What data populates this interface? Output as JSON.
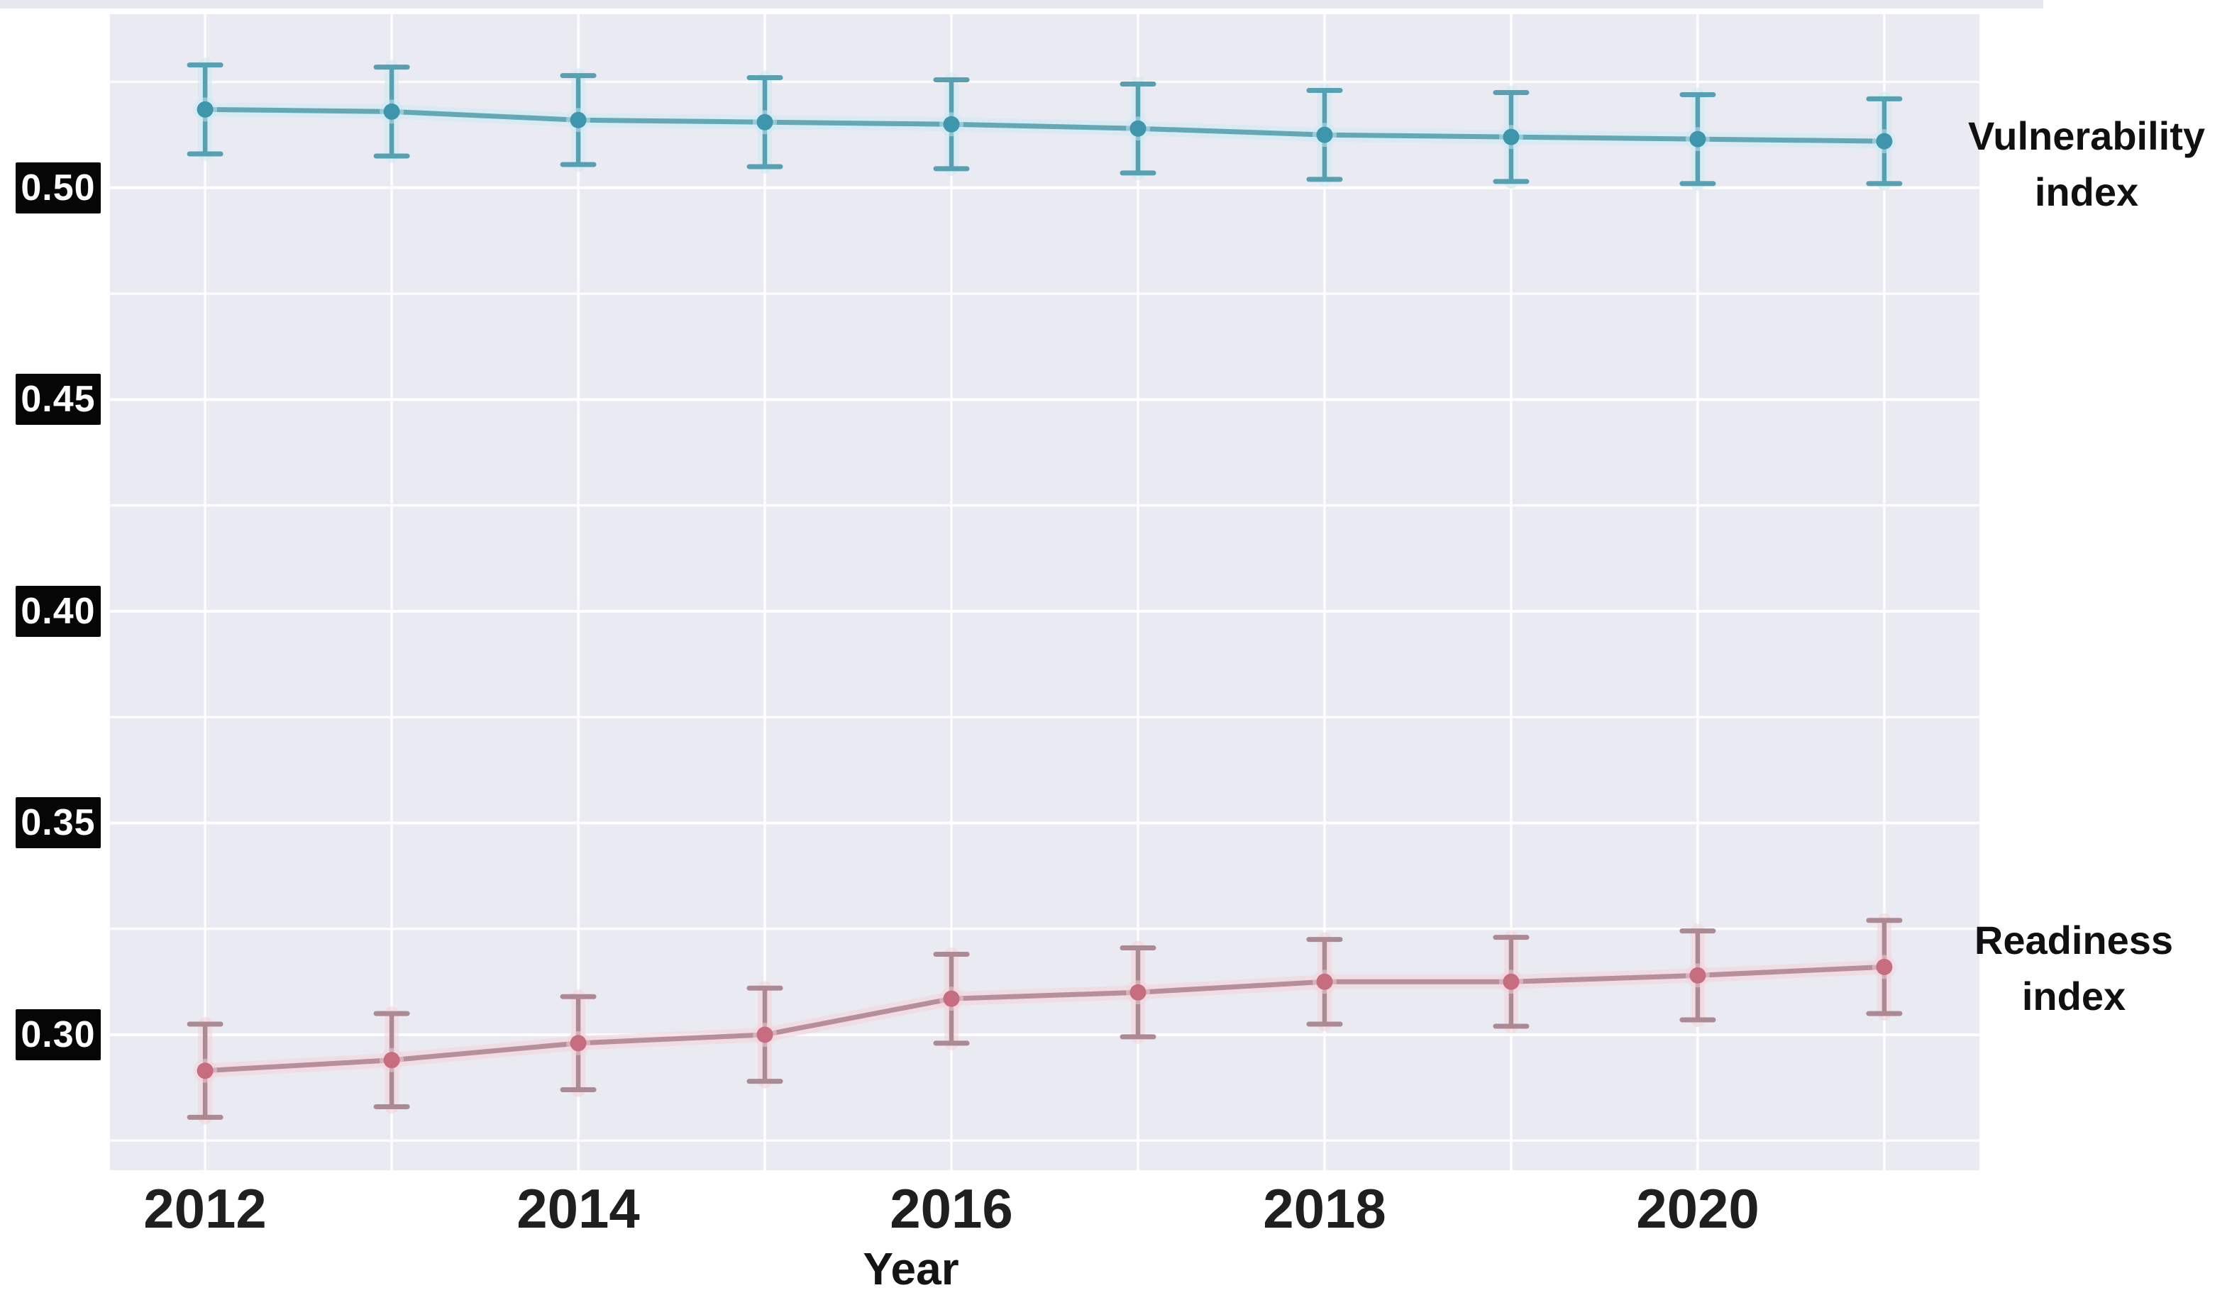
{
  "chart_data": {
    "type": "line",
    "x": [
      2012,
      2013,
      2014,
      2015,
      2016,
      2017,
      2018,
      2019,
      2020,
      2021
    ],
    "xlabel": "Year",
    "x_tick_years": [
      2012,
      2014,
      2016,
      2018,
      2020
    ],
    "x_tick_labels": [
      "2012",
      "2014",
      "2016",
      "2018",
      "2020"
    ],
    "y_tick_values": [
      0.5,
      0.45,
      0.4,
      0.35,
      0.3
    ],
    "y_tick_labels": [
      "0.50",
      "0.45",
      "0.40",
      "0.35",
      "0.30"
    ],
    "y_grid_step": 0.025,
    "xlim": [
      2011.49,
      2021.51
    ],
    "ylim": [
      0.268,
      0.541
    ],
    "grid": true,
    "plot_background": "#eaeaf2",
    "gridline_color": "#ffffff",
    "legend_position": "right-of-plot",
    "series": [
      {
        "name": "Vulnerability index",
        "label_lines": [
          "Vulnerability",
          "index"
        ],
        "line_color": "#64a8b6",
        "marker_color": "#3f96ac",
        "error_color": "#56a0b1",
        "halo_color": "#cdeaf2",
        "values": [
          0.5185,
          0.518,
          0.516,
          0.5155,
          0.515,
          0.514,
          0.5125,
          0.512,
          0.5115,
          0.511
        ],
        "errors": [
          0.0105,
          0.0105,
          0.0105,
          0.0105,
          0.0105,
          0.0105,
          0.0105,
          0.0105,
          0.0105,
          0.01
        ]
      },
      {
        "name": "Readiness index",
        "label_lines": [
          "Readiness",
          "index"
        ],
        "line_color": "#b78f9b",
        "marker_color": "#c66e80",
        "error_color": "#ab8a94",
        "halo_color": "#f4d3db",
        "values": [
          0.2915,
          0.294,
          0.298,
          0.3,
          0.3085,
          0.31,
          0.3125,
          0.3125,
          0.314,
          0.316
        ],
        "errors": [
          0.011,
          0.011,
          0.011,
          0.011,
          0.0105,
          0.0105,
          0.01,
          0.0105,
          0.0105,
          0.011
        ]
      }
    ]
  }
}
